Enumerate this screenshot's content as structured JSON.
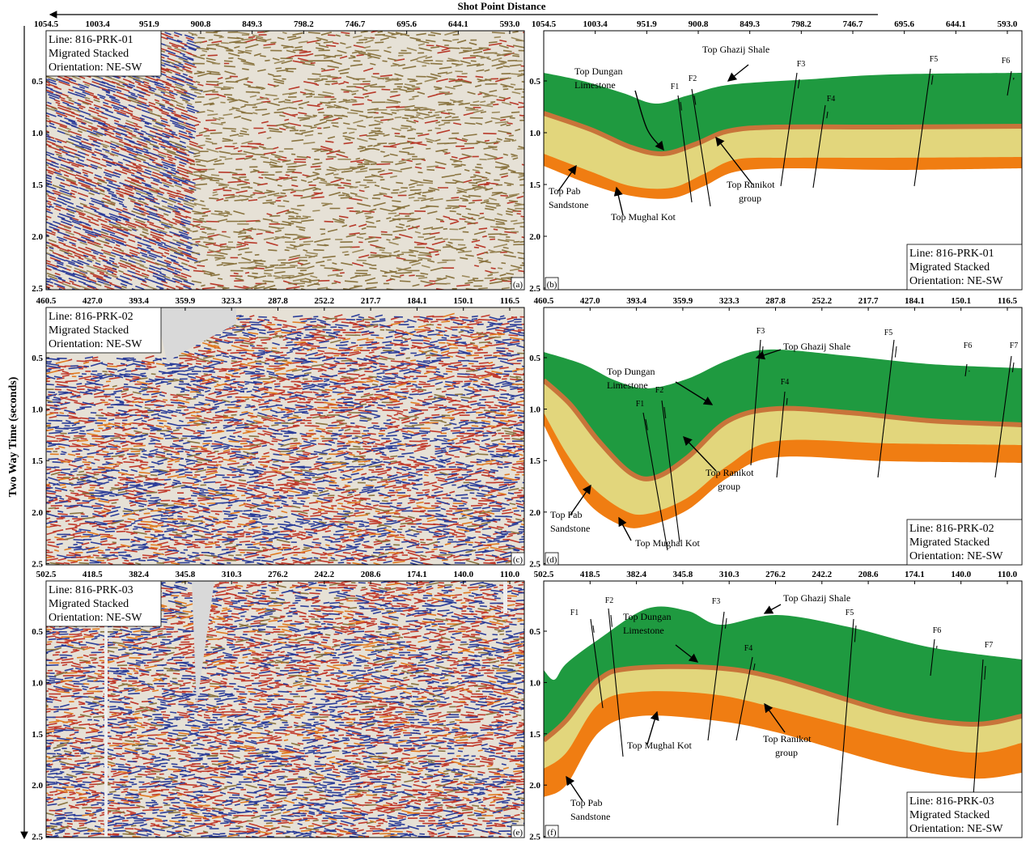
{
  "title": "Shot Point Distance",
  "y_axis_label": "Two Way Time (seconds)",
  "panels": [
    {
      "letter": "(a)",
      "x_ticks": [
        "1054.5",
        "1003.4",
        "951.9",
        "900.8",
        "849.3",
        "798.2",
        "746.7",
        "695.6",
        "644.1",
        "593.0"
      ],
      "y_ticks": [
        "0.5",
        "1.0",
        "1.5",
        "2.0",
        "2.5"
      ],
      "info": [
        "Line: 816-PRK-01",
        "Migrated Stacked",
        "Orientation: NE-SW"
      ]
    },
    {
      "letter": "(b)",
      "x_ticks": [
        "1054.5",
        "1003.4",
        "951.9",
        "900.8",
        "849.3",
        "798.2",
        "746.7",
        "695.6",
        "644.1",
        "593.0"
      ],
      "y_ticks": [
        "0.5",
        "1.0",
        "1.5",
        "2.0",
        "2.5"
      ],
      "info": [
        "Line: 816-PRK-01",
        "Migrated Stacked",
        "Orientation: NE-SW"
      ],
      "annotations": [
        {
          "lines": [
            "Top Dungan",
            "Limestone"
          ]
        },
        {
          "lines": [
            "Top Ghazij Shale"
          ]
        },
        {
          "lines": [
            "Top Ranikot",
            "group"
          ]
        },
        {
          "lines": [
            "Top Pab",
            "Sandstone"
          ]
        },
        {
          "lines": [
            "Top Mughal Kot"
          ]
        }
      ],
      "faults": [
        "F1",
        "F2",
        "F3",
        "F4",
        "F5",
        "F6"
      ]
    },
    {
      "letter": "(c)",
      "x_ticks": [
        "460.5",
        "427.0",
        "393.4",
        "359.9",
        "323.3",
        "287.8",
        "252.2",
        "217.7",
        "184.1",
        "150.1",
        "116.5"
      ],
      "y_ticks": [
        "0.5",
        "1.0",
        "1.5",
        "2.0",
        "2.5"
      ],
      "info": [
        "Line: 816-PRK-02",
        "Migrated Stacked",
        "Orientation: NE-SW"
      ]
    },
    {
      "letter": "(d)",
      "x_ticks": [
        "460.5",
        "427.0",
        "393.4",
        "359.9",
        "323.3",
        "287.8",
        "252.2",
        "217.7",
        "184.1",
        "150.1",
        "116.5"
      ],
      "y_ticks": [
        "0.5",
        "1.0",
        "1.5",
        "2.0",
        "2.5"
      ],
      "info": [
        "Line: 816-PRK-02",
        "Migrated Stacked",
        "Orientation: NE-SW"
      ],
      "annotations": [
        {
          "lines": [
            "Top Dungan",
            "Limestone"
          ]
        },
        {
          "lines": [
            "Top Ghazij Shale"
          ]
        },
        {
          "lines": [
            "Top Ranikot",
            "group"
          ]
        },
        {
          "lines": [
            "Top Pab",
            "Sandstone"
          ]
        },
        {
          "lines": [
            "Top Mughal Kot"
          ]
        }
      ],
      "faults": [
        "F1",
        "F2",
        "F3",
        "F4",
        "F5",
        "F6",
        "F7"
      ]
    },
    {
      "letter": "(e)",
      "x_ticks": [
        "502.5",
        "418.5",
        "382.4",
        "345.8",
        "310.3",
        "276.2",
        "242.2",
        "208.6",
        "174.1",
        "140.0",
        "110.0"
      ],
      "y_ticks": [
        "0.5",
        "1.0",
        "1.5",
        "2.0",
        "2.5"
      ],
      "info": [
        "Line: 816-PRK-03",
        "Migrated Stacked",
        "Orientation: NE-SW"
      ]
    },
    {
      "letter": "(f)",
      "x_ticks": [
        "502.5",
        "418.5",
        "382.4",
        "345.8",
        "310.3",
        "276.2",
        "242.2",
        "208.6",
        "174.1",
        "140.0",
        "110.0"
      ],
      "y_ticks": [
        "0.5",
        "1.0",
        "1.5",
        "2.0",
        "2.5"
      ],
      "info": [
        "Line: 816-PRK-03",
        "Migrated Stacked",
        "Orientation: NE-SW"
      ],
      "annotations": [
        {
          "lines": [
            "Top Dungan",
            "Limestone"
          ]
        },
        {
          "lines": [
            "Top Ghazij Shale"
          ]
        },
        {
          "lines": [
            "Top Ranikot",
            "group"
          ]
        },
        {
          "lines": [
            "Top Pab",
            "Sandstone"
          ]
        },
        {
          "lines": [
            "Top Mughal Kot"
          ]
        }
      ],
      "faults": [
        "F1",
        "F2",
        "F3",
        "F4",
        "F5",
        "F6",
        "F7"
      ]
    }
  ]
}
